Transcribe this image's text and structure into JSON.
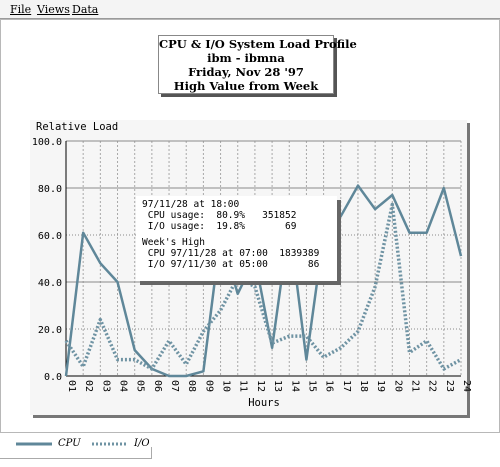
{
  "menu": [
    "File",
    "Views",
    "Data"
  ],
  "title": {
    "line1": "CPU & I/O System Load Profile",
    "line2": "ibm - ibmna",
    "line3": "Friday, Nov 28 '97",
    "line4": "High Value from Week"
  },
  "colors": {
    "cpu": "#5f8799",
    "io": "#6f93a3",
    "grid_major": "#8a8a8a",
    "grid_minor": "#a8a8a8"
  },
  "tooltip": {
    "lines": [
      "97/11/28 at 18:00",
      " CPU usage:  80.9%   351852",
      " I/O usage:  19.8%       69",
      "",
      "Week's High",
      " CPU 97/11/28 at 07:00  1839389",
      " I/O 97/11/30 at 05:00       86"
    ]
  },
  "legend": {
    "cpu": "CPU",
    "io": "I/O"
  },
  "chart_data": {
    "type": "line",
    "title": "",
    "ylabel": "Relative Load",
    "xlabel": "Hours",
    "ylim": [
      0,
      100
    ],
    "yticks": [
      "0.0",
      "20.0",
      "40.0",
      "60.0",
      "80.0",
      "100.0"
    ],
    "categories": [
      "01",
      "02",
      "03",
      "04",
      "05",
      "06",
      "07",
      "08",
      "09",
      "10",
      "11",
      "12",
      "13",
      "14",
      "15",
      "16",
      "17",
      "18",
      "19",
      "20",
      "21",
      "22",
      "23",
      "24"
    ],
    "series": [
      {
        "name": "CPU",
        "style": "solid",
        "values": [
          0,
          61,
          48,
          40,
          11,
          3,
          0,
          0,
          2,
          60,
          35,
          50,
          12,
          65,
          7,
          60,
          68,
          81,
          71,
          77,
          61,
          61,
          80,
          51
        ]
      },
      {
        "name": "I/O",
        "style": "dotted",
        "values": [
          15,
          4,
          24,
          7,
          7,
          3,
          15,
          5,
          19,
          28,
          42,
          38,
          14,
          17,
          17,
          8,
          12,
          19,
          38,
          73,
          10,
          15,
          3,
          7
        ]
      }
    ]
  }
}
